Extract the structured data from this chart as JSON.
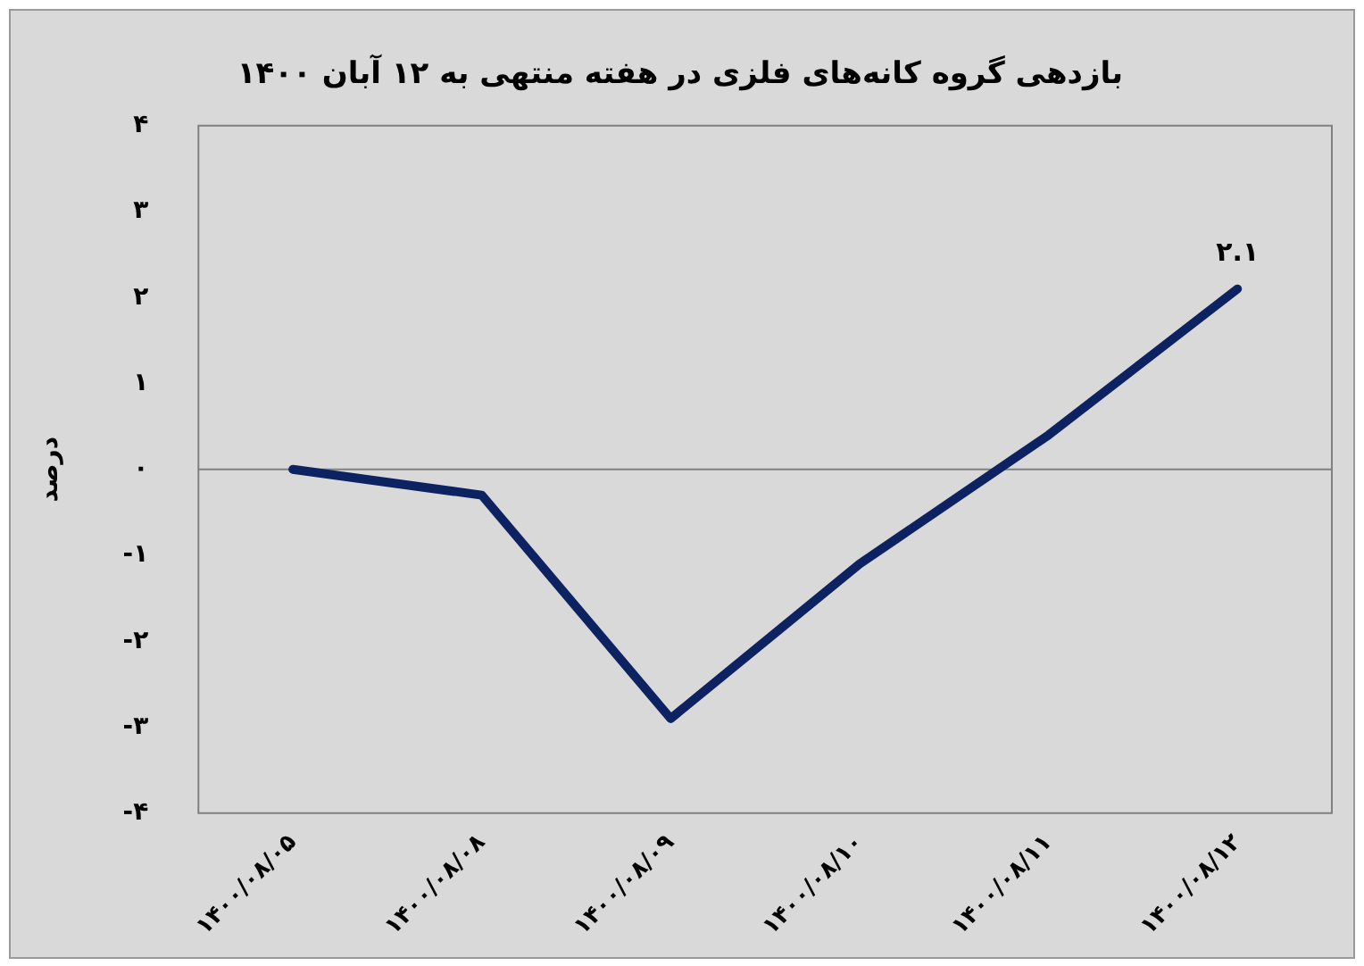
{
  "chart_data": {
    "type": "line",
    "title": "بازدهی گروه کانه‌های فلزی در هفته منتهی به ۱۲ آبان ۱۴۰۰",
    "ylabel": "درصد",
    "categories": [
      "۱۴۰۰/۰۸/۰۵",
      "۱۴۰۰/۰۸/۰۸",
      "۱۴۰۰/۰۸/۰۹",
      "۱۴۰۰/۰۸/۱۰",
      "۱۴۰۰/۰۸/۱۱",
      "۱۴۰۰/۰۸/۱۲"
    ],
    "series": [
      {
        "color": "#0d2260",
        "values": [
          0,
          -0.3,
          -2.9,
          -1.1,
          0.4,
          2.1
        ],
        "value_labels": [
          null,
          null,
          null,
          null,
          null,
          "۲.۱"
        ]
      }
    ],
    "ylim": [
      -4,
      4
    ],
    "yticks": [
      {
        "value": -4,
        "label": "-۴"
      },
      {
        "value": -3,
        "label": "-۳"
      },
      {
        "value": -2,
        "label": "-۲"
      },
      {
        "value": -1,
        "label": "-۱"
      },
      {
        "value": 0,
        "label": "۰"
      },
      {
        "value": 1,
        "label": "۱"
      },
      {
        "value": 2,
        "label": "۲"
      },
      {
        "value": 3,
        "label": "۳"
      },
      {
        "value": 4,
        "label": "۴"
      }
    ],
    "ref_lines": [
      {
        "axis": "y",
        "value": 0,
        "color": "#808080"
      }
    ],
    "grid": false,
    "legend": false,
    "marker": "none",
    "line_style": "solid"
  }
}
